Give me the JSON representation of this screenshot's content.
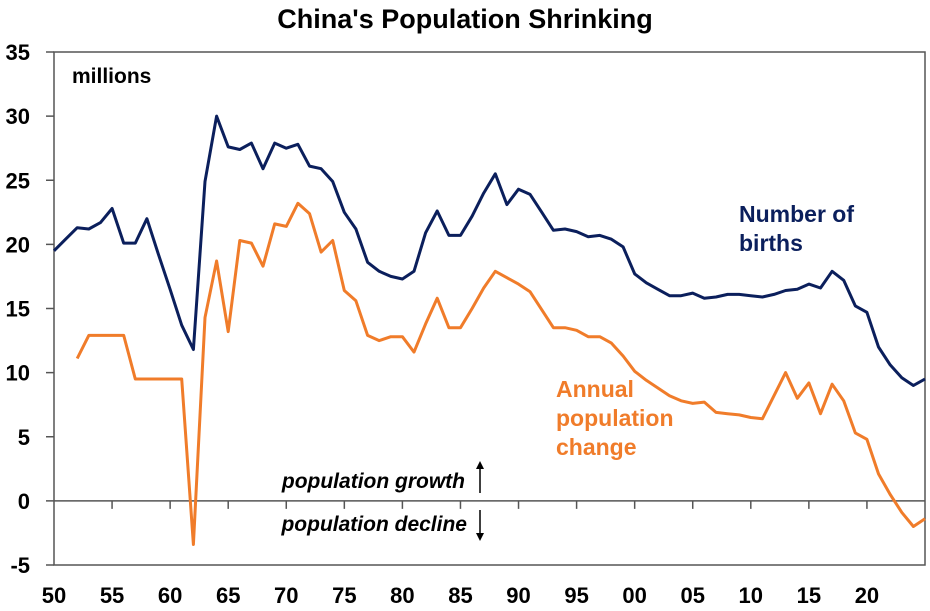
{
  "chart_data": {
    "type": "line",
    "title": "China's Population Shrinking",
    "unit_label": "millions",
    "xlabel": "",
    "ylabel": "",
    "xlim": [
      1950,
      2025
    ],
    "ylim": [
      -5,
      35
    ],
    "yticks": [
      -5,
      0,
      5,
      10,
      15,
      20,
      25,
      30,
      35
    ],
    "xticks": [
      1950,
      1955,
      1960,
      1965,
      1970,
      1975,
      1980,
      1985,
      1990,
      1995,
      2000,
      2005,
      2010,
      2015,
      2020
    ],
    "xtick_labels": [
      "50",
      "55",
      "60",
      "65",
      "70",
      "75",
      "80",
      "85",
      "90",
      "95",
      "00",
      "05",
      "10",
      "15",
      "20"
    ],
    "grid": false,
    "legend": "inline labels",
    "series": [
      {
        "name": "Number of births",
        "label_lines": [
          "Number of",
          "births"
        ],
        "color": "#0B1F5C",
        "x": [
          1950,
          1951,
          1952,
          1953,
          1954,
          1955,
          1956,
          1957,
          1958,
          1959,
          1960,
          1961,
          1962,
          1963,
          1964,
          1965,
          1966,
          1967,
          1968,
          1969,
          1970,
          1971,
          1972,
          1973,
          1974,
          1975,
          1976,
          1977,
          1978,
          1979,
          1980,
          1981,
          1982,
          1983,
          1984,
          1985,
          1986,
          1987,
          1988,
          1989,
          1990,
          1991,
          1992,
          1993,
          1994,
          1995,
          1996,
          1997,
          1998,
          1999,
          2000,
          2001,
          2002,
          2003,
          2004,
          2005,
          2006,
          2007,
          2008,
          2009,
          2010,
          2011,
          2012,
          2013,
          2014,
          2015,
          2016,
          2017,
          2018,
          2019,
          2020,
          2021,
          2022,
          2023,
          2024,
          2025
        ],
        "values": [
          19.5,
          20.4,
          21.3,
          21.2,
          21.7,
          22.8,
          20.1,
          20.1,
          22.0,
          19.2,
          16.5,
          13.7,
          11.8,
          24.9,
          30.0,
          27.6,
          27.4,
          27.9,
          25.9,
          27.9,
          27.5,
          27.8,
          26.1,
          25.9,
          24.9,
          22.5,
          21.2,
          18.6,
          17.9,
          17.5,
          17.3,
          17.9,
          20.9,
          22.6,
          20.7,
          20.7,
          22.2,
          24.0,
          25.5,
          23.1,
          24.3,
          23.9,
          22.5,
          21.1,
          21.2,
          21.0,
          20.6,
          20.7,
          20.4,
          19.8,
          17.7,
          17.0,
          16.5,
          16.0,
          16.0,
          16.2,
          15.8,
          15.9,
          16.1,
          16.1,
          16.0,
          15.9,
          16.1,
          16.4,
          16.5,
          16.9,
          16.6,
          17.9,
          17.2,
          15.2,
          14.7,
          12.0,
          10.6,
          9.6,
          9.0,
          9.5
        ]
      },
      {
        "name": "Annual population change",
        "label_lines": [
          "Annual",
          "population",
          "change"
        ],
        "color": "#F07C2A",
        "x": [
          1952,
          1953,
          1954,
          1955,
          1956,
          1957,
          1958,
          1959,
          1960,
          1961,
          1962,
          1963,
          1964,
          1965,
          1966,
          1967,
          1968,
          1969,
          1970,
          1971,
          1972,
          1973,
          1974,
          1975,
          1976,
          1977,
          1978,
          1979,
          1980,
          1981,
          1982,
          1983,
          1984,
          1985,
          1986,
          1987,
          1988,
          1989,
          1990,
          1991,
          1992,
          1993,
          1994,
          1995,
          1996,
          1997,
          1998,
          1999,
          2000,
          2001,
          2002,
          2003,
          2004,
          2005,
          2006,
          2007,
          2008,
          2009,
          2010,
          2011,
          2012,
          2013,
          2014,
          2015,
          2016,
          2017,
          2018,
          2019,
          2020,
          2021,
          2022,
          2023,
          2024,
          2025
        ],
        "values": [
          11.1,
          12.9,
          12.9,
          12.9,
          12.9,
          9.5,
          9.5,
          9.5,
          9.5,
          9.5,
          -3.4,
          14.3,
          18.7,
          13.2,
          20.3,
          20.1,
          18.3,
          21.6,
          21.4,
          23.2,
          22.4,
          19.4,
          20.3,
          16.4,
          15.6,
          12.9,
          12.5,
          12.8,
          12.8,
          11.6,
          13.8,
          15.8,
          13.5,
          13.5,
          15.0,
          16.6,
          17.9,
          17.4,
          16.9,
          16.3,
          14.9,
          13.5,
          13.5,
          13.3,
          12.8,
          12.8,
          12.3,
          11.3,
          10.1,
          9.4,
          8.8,
          8.2,
          7.8,
          7.6,
          7.7,
          6.9,
          6.8,
          6.7,
          6.5,
          6.4,
          8.2,
          10.0,
          8.0,
          9.2,
          6.8,
          9.1,
          7.8,
          5.3,
          4.8,
          2.1,
          0.5,
          -0.9,
          -2.0,
          -1.4
        ]
      }
    ],
    "annotations": {
      "growth": "population growth",
      "decline": "population decline"
    }
  }
}
